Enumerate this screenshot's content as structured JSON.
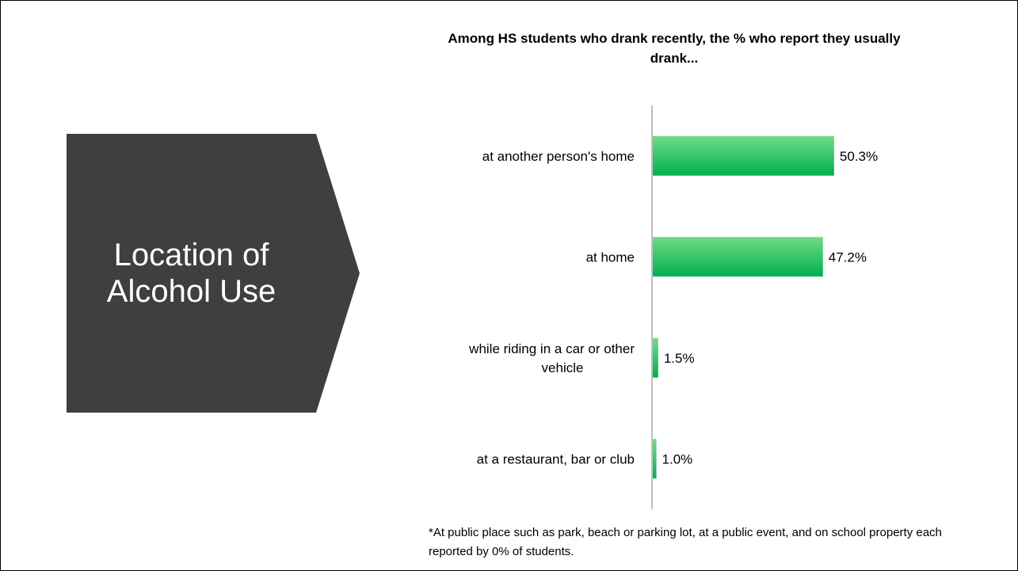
{
  "section_title": "Location of Alcohol Use",
  "chart_data": {
    "type": "bar",
    "orientation": "horizontal",
    "title": "Among HS students who drank recently, the % who report they usually drank...",
    "categories": [
      "at another person's home",
      "at home",
      "while riding in a car or other vehicle",
      "at a restaurant, bar or club"
    ],
    "values": [
      50.3,
      47.2,
      1.5,
      1.0
    ],
    "value_labels": [
      "50.3%",
      "47.2%",
      "1.5%",
      "1.0%"
    ],
    "unit": "%",
    "xlim": [
      0,
      100
    ],
    "grid": false,
    "legend": "none",
    "bar_color": "#00b050"
  },
  "footnote": "*At public place such as park, beach or parking lot, at a public event, and on school property each reported by 0% of students.",
  "colors": {
    "arrow_fill": "#3f3f3f",
    "bar_top": "#6fdc86",
    "bar_bottom": "#00b050",
    "axis": "#7f7f7f"
  }
}
